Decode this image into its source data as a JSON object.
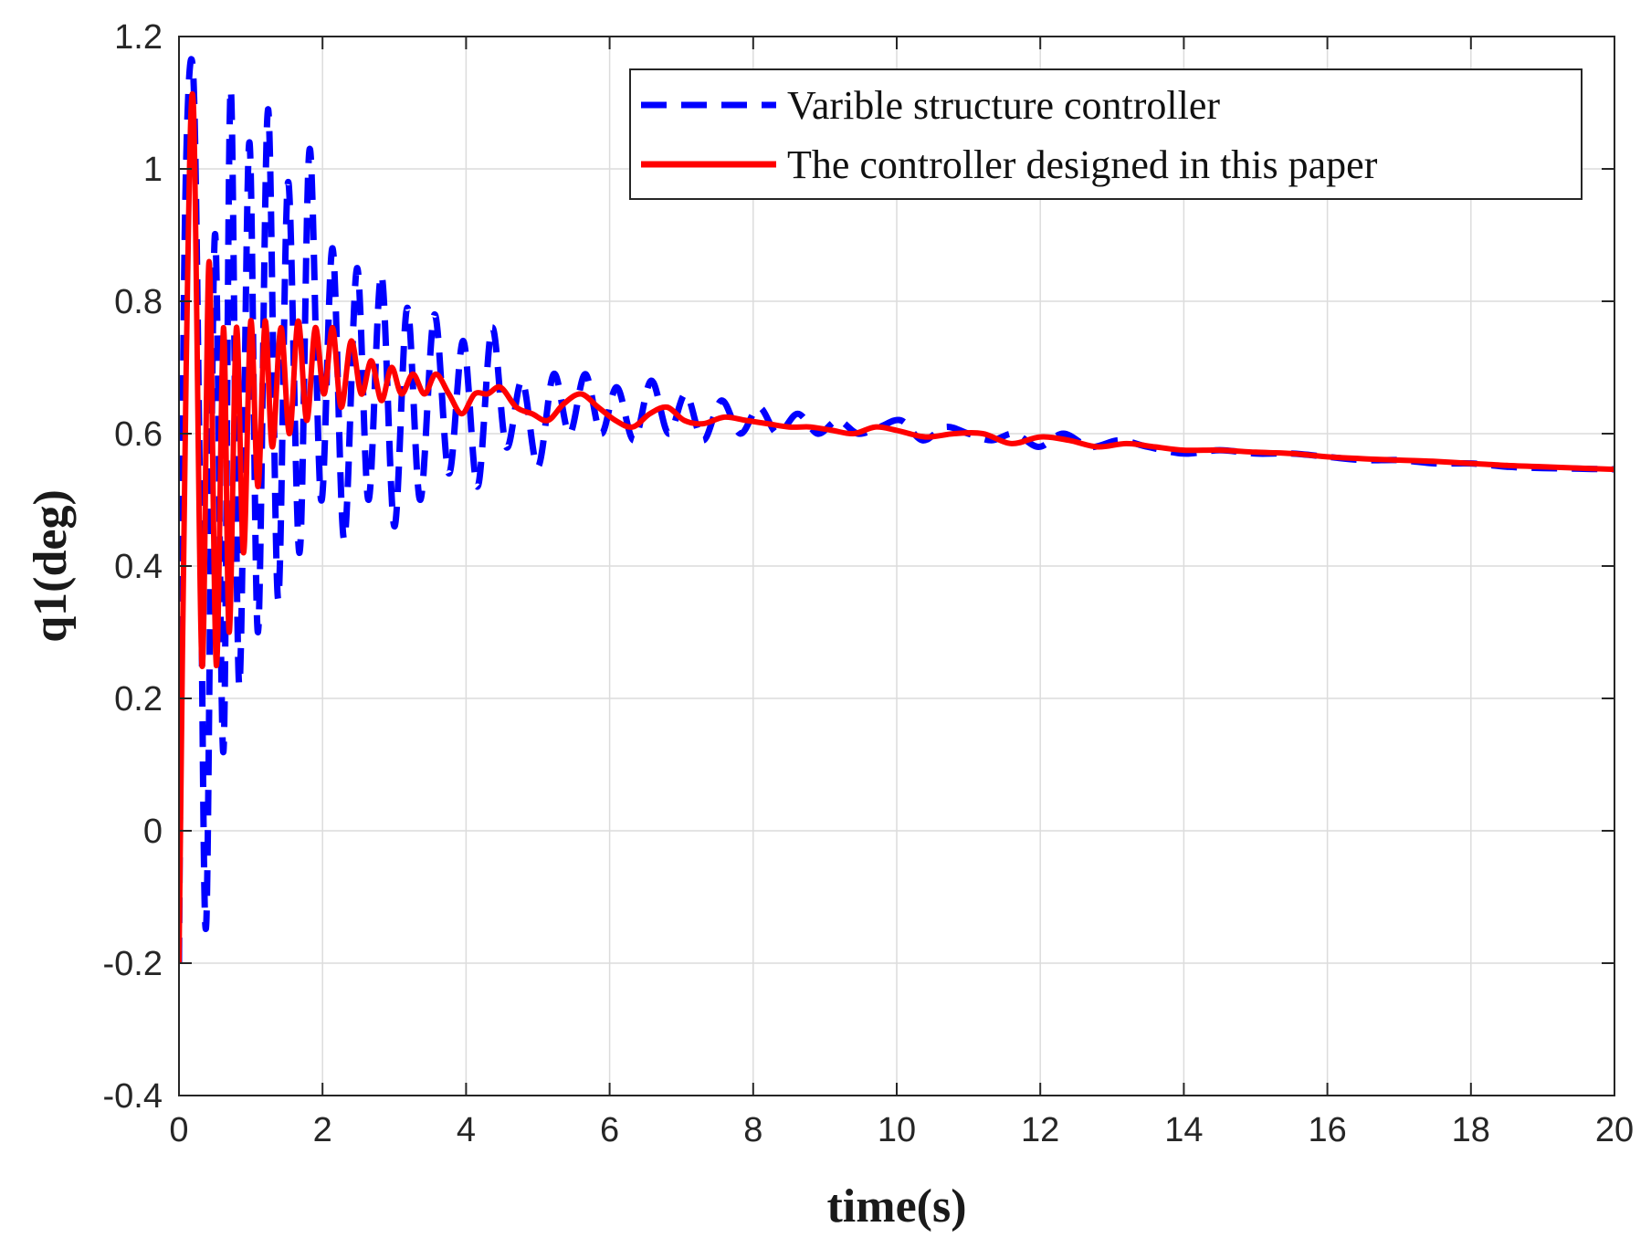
{
  "chart_data": {
    "type": "line",
    "title": "",
    "xlabel": "time(s)",
    "ylabel": "q1(deg)",
    "xlim": [
      0,
      20
    ],
    "ylim": [
      -0.4,
      1.2
    ],
    "xticks": [
      0,
      2,
      4,
      6,
      8,
      10,
      12,
      14,
      16,
      18,
      20
    ],
    "yticks": [
      -0.4,
      -0.2,
      0,
      0.2,
      0.4,
      0.6,
      0.8,
      1,
      1.2
    ],
    "xtick_labels": [
      "0",
      "2",
      "4",
      "6",
      "8",
      "10",
      "12",
      "14",
      "16",
      "18",
      "20"
    ],
    "ytick_labels": [
      "-0.4",
      "-0.2",
      "0",
      "0.2",
      "0.4",
      "0.6",
      "0.8",
      "1",
      "1.2"
    ],
    "grid": true,
    "legend_position": "top-right",
    "series": [
      {
        "name": "Varible structure controller",
        "color": "#0000ff",
        "style": "dashed",
        "x": [
          0,
          0.08,
          0.2,
          0.3,
          0.38,
          0.5,
          0.62,
          0.72,
          0.84,
          0.98,
          1.1,
          1.24,
          1.38,
          1.52,
          1.68,
          1.82,
          1.98,
          2.14,
          2.3,
          2.48,
          2.64,
          2.82,
          3.0,
          3.18,
          3.36,
          3.56,
          3.76,
          3.96,
          4.16,
          4.36,
          4.56,
          4.78,
          5.0,
          5.22,
          5.44,
          5.66,
          5.88,
          6.1,
          6.34,
          6.58,
          6.82,
          7.06,
          7.3,
          7.56,
          7.82,
          8.08,
          8.34,
          8.62,
          8.9,
          9.18,
          9.46,
          9.76,
          10.06,
          10.36,
          10.68,
          11.0,
          11.32,
          11.64,
          11.98,
          12.32,
          12.7,
          13.1,
          13.5,
          14.0,
          14.5,
          15.0,
          15.5,
          16.0,
          16.5,
          17.0,
          17.5,
          18.0,
          18.5,
          19.0,
          19.5,
          20.0
        ],
        "values": [
          -0.2,
          0.9,
          1.14,
          0.45,
          -0.14,
          0.9,
          0.12,
          1.12,
          0.22,
          1.04,
          0.3,
          1.09,
          0.35,
          0.98,
          0.42,
          1.03,
          0.5,
          0.88,
          0.44,
          0.85,
          0.5,
          0.84,
          0.46,
          0.79,
          0.5,
          0.78,
          0.54,
          0.74,
          0.52,
          0.76,
          0.58,
          0.68,
          0.55,
          0.69,
          0.6,
          0.69,
          0.6,
          0.67,
          0.59,
          0.68,
          0.6,
          0.66,
          0.59,
          0.65,
          0.6,
          0.64,
          0.6,
          0.63,
          0.6,
          0.62,
          0.6,
          0.61,
          0.62,
          0.59,
          0.61,
          0.6,
          0.59,
          0.6,
          0.58,
          0.6,
          0.58,
          0.59,
          0.58,
          0.57,
          0.575,
          0.57,
          0.57,
          0.565,
          0.56,
          0.56,
          0.555,
          0.555,
          0.55,
          0.548,
          0.547,
          0.546
        ]
      },
      {
        "name": "The controller designed in this paper",
        "color": "#ff0000",
        "style": "solid",
        "x": [
          0,
          0.1,
          0.2,
          0.32,
          0.42,
          0.52,
          0.62,
          0.7,
          0.8,
          0.9,
          1.0,
          1.1,
          1.2,
          1.3,
          1.42,
          1.54,
          1.66,
          1.78,
          1.9,
          2.02,
          2.14,
          2.26,
          2.4,
          2.54,
          2.68,
          2.82,
          2.96,
          3.1,
          3.26,
          3.42,
          3.58,
          3.76,
          3.94,
          4.12,
          4.3,
          4.48,
          4.7,
          4.92,
          5.14,
          5.36,
          5.6,
          5.84,
          6.08,
          6.32,
          6.56,
          6.8,
          7.04,
          7.3,
          7.6,
          7.9,
          8.2,
          8.5,
          8.8,
          9.1,
          9.4,
          9.7,
          10.0,
          10.4,
          10.8,
          11.2,
          11.6,
          12.0,
          12.4,
          12.8,
          13.2,
          13.6,
          14.0,
          14.5,
          15.0,
          15.5,
          16.0,
          16.5,
          17.0,
          17.5,
          18.0,
          18.5,
          19.0,
          19.5,
          20.0
        ],
        "values": [
          -0.2,
          0.7,
          1.1,
          0.25,
          0.86,
          0.25,
          0.76,
          0.3,
          0.76,
          0.42,
          0.77,
          0.52,
          0.77,
          0.58,
          0.76,
          0.6,
          0.77,
          0.62,
          0.76,
          0.66,
          0.76,
          0.64,
          0.74,
          0.66,
          0.71,
          0.65,
          0.7,
          0.66,
          0.69,
          0.66,
          0.69,
          0.66,
          0.63,
          0.66,
          0.66,
          0.67,
          0.64,
          0.63,
          0.62,
          0.645,
          0.66,
          0.64,
          0.62,
          0.61,
          0.63,
          0.64,
          0.62,
          0.615,
          0.625,
          0.62,
          0.615,
          0.61,
          0.61,
          0.605,
          0.6,
          0.61,
          0.605,
          0.595,
          0.6,
          0.6,
          0.585,
          0.595,
          0.59,
          0.58,
          0.585,
          0.58,
          0.575,
          0.575,
          0.572,
          0.57,
          0.565,
          0.562,
          0.56,
          0.558,
          0.555,
          0.552,
          0.55,
          0.548,
          0.546
        ]
      }
    ]
  }
}
